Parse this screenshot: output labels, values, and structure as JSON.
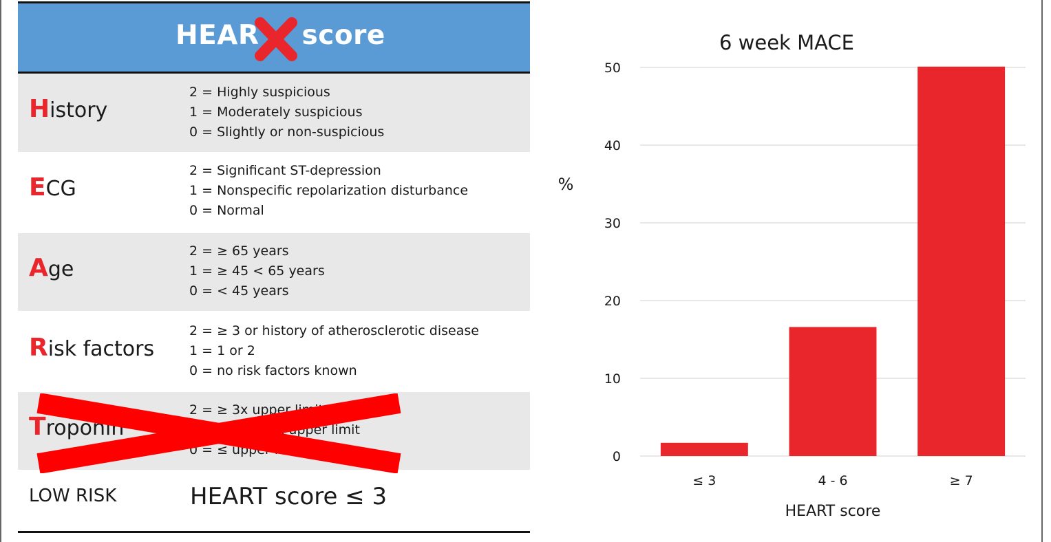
{
  "table": {
    "title_left": "HEAR",
    "title_right": "score",
    "rows": [
      {
        "initial": "H",
        "rest": "istory",
        "options": [
          "2 = Highly suspicious",
          "1 = Moderately suspicious",
          "0 = Slightly or non-suspicious"
        ]
      },
      {
        "initial": "E",
        "rest": "CG",
        "options": [
          "2 = Significant ST-depression",
          "1 = Nonspecific repolarization disturbance",
          "0 = Normal"
        ]
      },
      {
        "initial": "A",
        "rest": "ge",
        "options": [
          "2 = ≥ 65 years",
          "1 = ≥ 45 < 65 years",
          "0 = < 45 years"
        ]
      },
      {
        "initial": "R",
        "rest": "isk factors",
        "options": [
          "2 = ≥ 3 or history of atherosclerotic disease",
          "1 = 1 or 2",
          "0 = no risk factors known"
        ]
      },
      {
        "initial": "T",
        "rest": "roponin",
        "options": [
          "2 = ≥ 3x upper limit",
          "1 = > 1 - < 3x upper limit",
          "0 = ≤ upper limit"
        ]
      }
    ],
    "low_risk_label": "LOW RISK",
    "low_risk_value": "HEART score ≤ 3"
  },
  "colors": {
    "header_blue": "#5b9bd5",
    "accent_red": "#e8262c",
    "row_shade": "#e8e8e8"
  },
  "chart_data": {
    "type": "bar",
    "title": "6 week MACE",
    "xlabel": "HEART score",
    "ylabel": "%",
    "categories": [
      "≤ 3",
      "4 - 6",
      "≥ 7"
    ],
    "values": [
      1.7,
      16.6,
      50.1
    ],
    "ylim": [
      0,
      50
    ],
    "yticks": [
      0,
      10,
      20,
      30,
      40,
      50
    ],
    "grid": true,
    "bar_color": "#e8262c"
  }
}
